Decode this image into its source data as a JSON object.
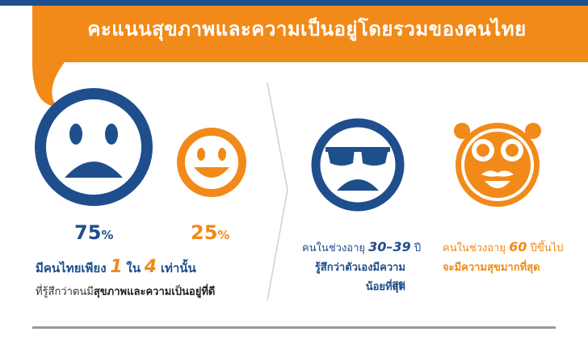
{
  "colors": {
    "navy": "#1f4e8c",
    "orange": "#f18a18",
    "gray": "#333333"
  },
  "banner": {
    "title": "คะแนนสุขภาพและความเป็นอยู่โดยรวมของคนไทย"
  },
  "left": {
    "sad_pct": "75",
    "happy_pct": "25",
    "pct_unit": "%",
    "line1": {
      "pre": "มีคนไทยเพียง",
      "n1": "1",
      "mid": "ใน",
      "n2": "4",
      "post": "เท่านั้น"
    },
    "line2": {
      "pre": "ที่รู้สึกว่าตนมี",
      "bold": "สุขภาพและความเป็นอยู่ที่ดี"
    }
  },
  "middle": {
    "line1": {
      "pre": "คนในช่วงอายุ",
      "range": "30–39",
      "post": "ปี"
    },
    "line2": "รู้สึกว่าตัวเองมีความสุข",
    "line3": "น้อยที่สุด"
  },
  "right": {
    "line1": {
      "pre": "คนในช่วงอายุ",
      "age": "60",
      "post": "ปีขึ้นไป"
    },
    "line2": "จะมีความสุขมากที่สุด"
  }
}
